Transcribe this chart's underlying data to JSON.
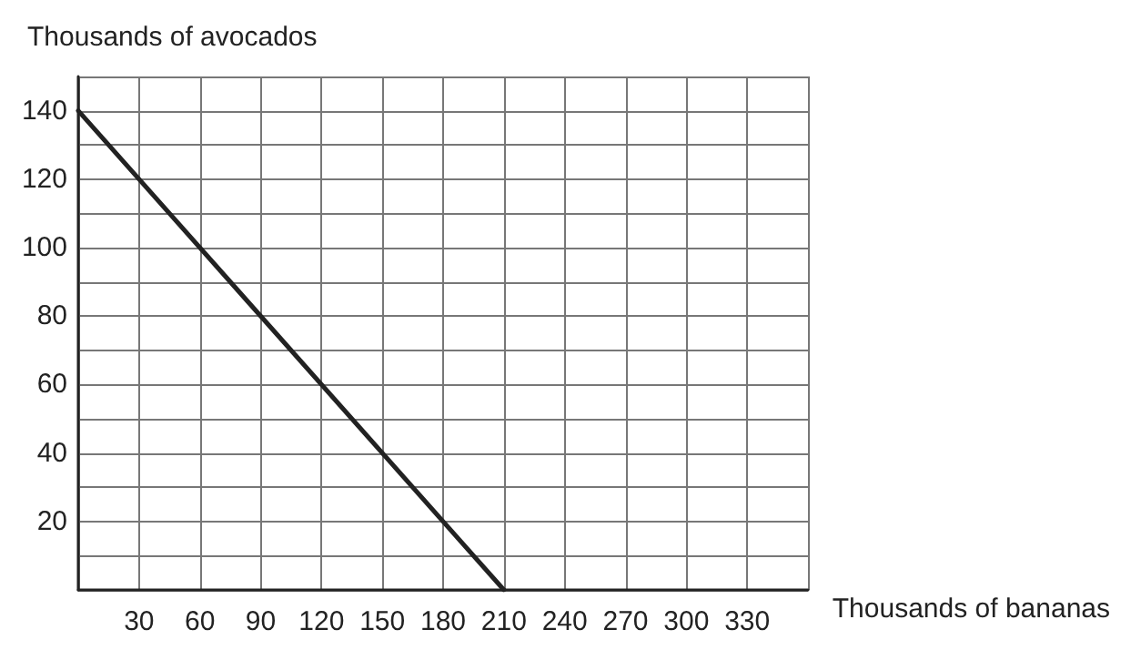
{
  "chart_data": {
    "type": "line",
    "xlabel": "Thousands of bananas",
    "ylabel": "Thousands of avocados",
    "x": [
      0,
      210
    ],
    "series": [
      {
        "color": "#222222",
        "values": [
          140,
          0
        ]
      }
    ],
    "xlim": [
      0,
      360
    ],
    "xticks": [
      30,
      60,
      90,
      120,
      150,
      180,
      210,
      240,
      270,
      300,
      330,
      {
        "value": 360,
        "label": null
      }
    ],
    "ylim": [
      0,
      150
    ],
    "yticks": [
      {
        "value": 10,
        "label": null
      },
      20,
      {
        "value": 30,
        "label": null
      },
      40,
      {
        "value": 50,
        "label": null
      },
      60,
      {
        "value": 70,
        "label": null
      },
      80,
      {
        "value": 90,
        "label": null
      },
      100,
      {
        "value": 110,
        "label": null
      },
      120,
      {
        "value": 130,
        "label": null
      },
      140,
      {
        "value": 150,
        "label": null
      }
    ],
    "grid": true,
    "marker": "none",
    "line_style": "solid"
  }
}
